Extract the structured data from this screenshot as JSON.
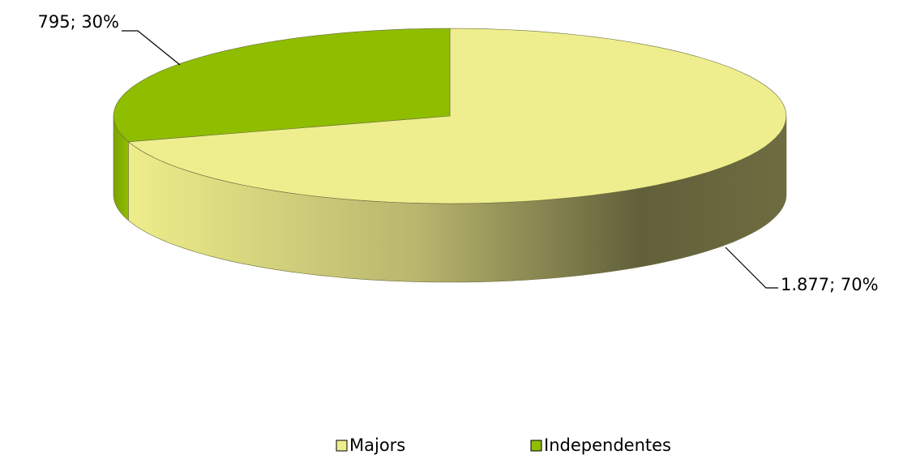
{
  "chart_data": {
    "type": "pie",
    "categories": [
      "Majors",
      "Independentes"
    ],
    "values": [
      1877,
      795
    ],
    "value_labels": [
      "1.877; 70%",
      "795; 30%"
    ],
    "colors": [
      "#eeee8e",
      "#8fbd00"
    ],
    "legend": "bottom"
  }
}
